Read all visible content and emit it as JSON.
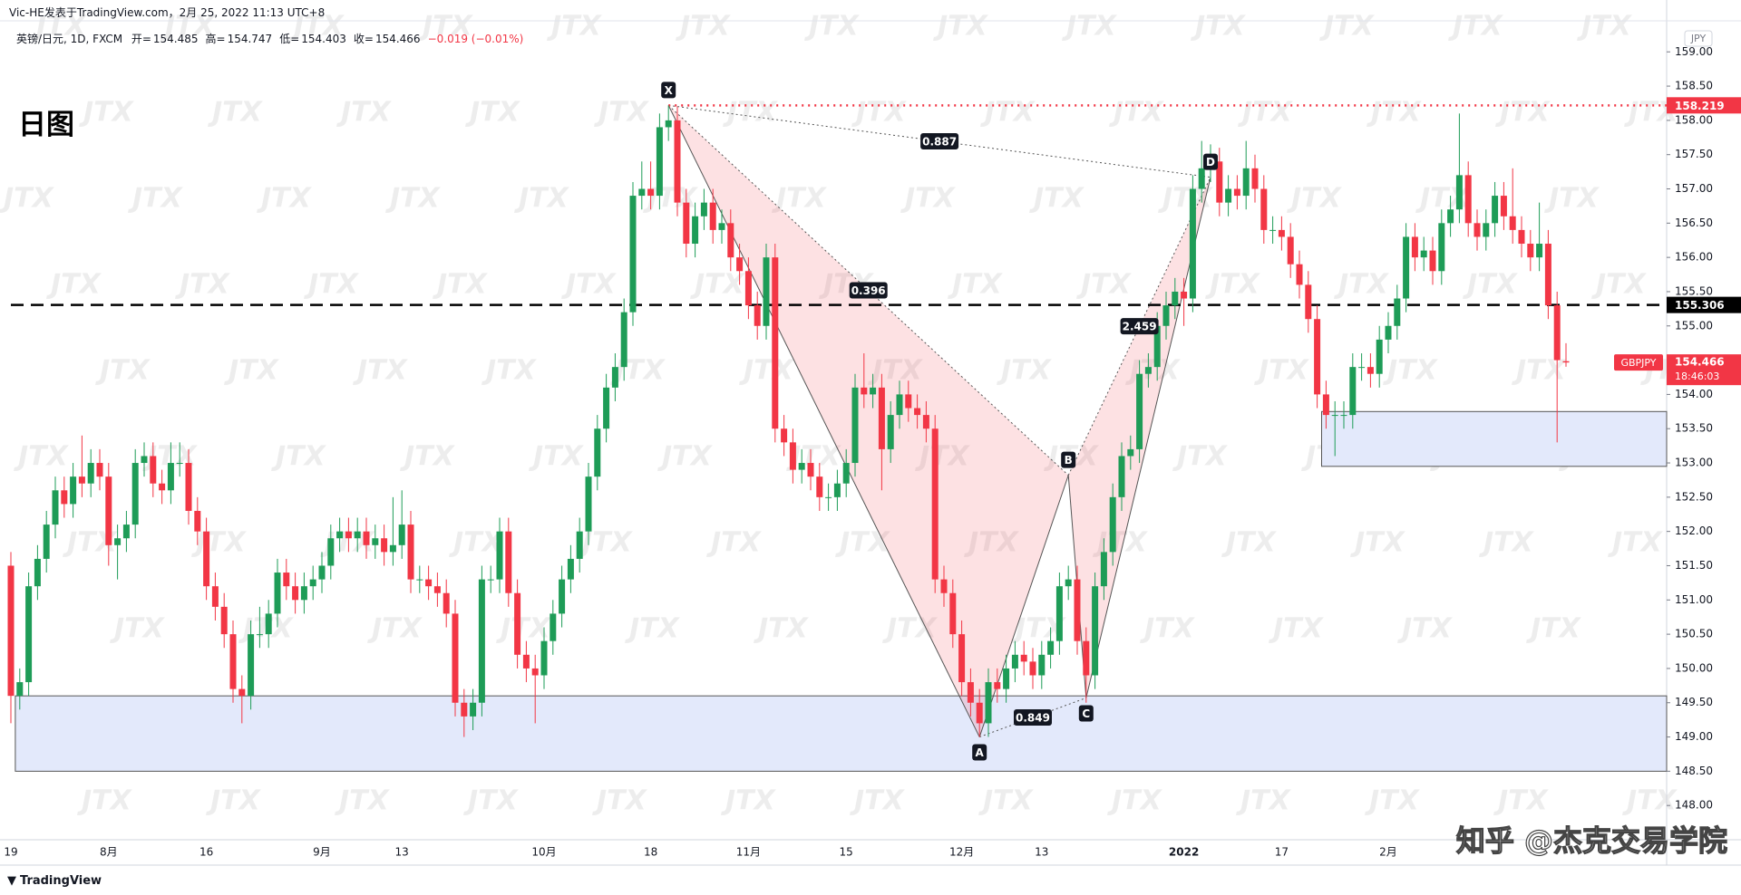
{
  "header": {
    "author_line": "Vic-HE发表于TradingView.com，2月 25, 2022 11:13 UTC+8"
  },
  "footer": {
    "brand": "TradingView",
    "watermark": "知乎 @杰克交易学院"
  },
  "chart_data": {
    "type": "candlestick",
    "title": "日图",
    "unit": "JPY",
    "legend": {
      "symbol": "英镑/日元, 1D, FXCM",
      "fields": [
        {
          "label": "开=",
          "value": 154.485
        },
        {
          "label": "高=",
          "value": 154.747
        },
        {
          "label": "低=",
          "value": 154.403
        },
        {
          "label": "收=",
          "value": 154.466
        }
      ],
      "change": "−0.019 (−0.01%)"
    },
    "background_mark": "JTX",
    "up_color": "#1e9c57",
    "down_color": "#f23645",
    "categories": [
      "19",
      null,
      null,
      null,
      null,
      null,
      null,
      null,
      null,
      null,
      null,
      "8月",
      null,
      null,
      null,
      null,
      null,
      null,
      null,
      null,
      null,
      null,
      "16",
      null,
      null,
      null,
      null,
      null,
      null,
      null,
      null,
      null,
      null,
      null,
      null,
      "9月",
      null,
      null,
      null,
      null,
      null,
      null,
      null,
      null,
      "13",
      null,
      null,
      null,
      null,
      null,
      null,
      null,
      null,
      null,
      null,
      null,
      null,
      null,
      null,
      null,
      "10月",
      null,
      null,
      null,
      null,
      null,
      null,
      null,
      null,
      null,
      null,
      null,
      "18",
      null,
      null,
      null,
      null,
      null,
      null,
      null,
      null,
      null,
      null,
      "11月",
      null,
      null,
      null,
      null,
      null,
      null,
      null,
      null,
      null,
      null,
      "15",
      null,
      null,
      null,
      null,
      null,
      null,
      null,
      null,
      null,
      null,
      null,
      null,
      "12月",
      null,
      null,
      null,
      null,
      null,
      null,
      null,
      null,
      "13",
      null,
      null,
      null,
      null,
      null,
      null,
      null,
      null,
      null,
      null,
      null,
      null,
      null,
      null,
      null,
      "2022",
      null,
      null,
      null,
      null,
      null,
      null,
      null,
      null,
      null,
      null,
      "17",
      null,
      null,
      null,
      null,
      null,
      null,
      null,
      null,
      null,
      null,
      null,
      "2月",
      null,
      null,
      null,
      null,
      null,
      null,
      null,
      null,
      null,
      null,
      null,
      null,
      null,
      null,
      null,
      null,
      null,
      null,
      null,
      null
    ],
    "ohlc": [
      [
        151.5,
        151.7,
        149.2,
        149.6
      ],
      [
        149.6,
        150.0,
        149.4,
        149.8
      ],
      [
        149.8,
        151.4,
        149.6,
        151.2
      ],
      [
        151.2,
        151.8,
        151.0,
        151.6
      ],
      [
        151.6,
        152.3,
        151.4,
        152.1
      ],
      [
        152.1,
        152.8,
        151.9,
        152.6
      ],
      [
        152.6,
        152.8,
        152.2,
        152.4
      ],
      [
        152.4,
        153.0,
        152.2,
        152.8
      ],
      [
        152.8,
        153.4,
        152.5,
        152.7
      ],
      [
        152.7,
        153.2,
        152.5,
        153.0
      ],
      [
        153.0,
        153.2,
        152.6,
        152.8
      ],
      [
        152.8,
        153.0,
        151.5,
        151.8
      ],
      [
        151.8,
        152.1,
        151.3,
        151.9
      ],
      [
        151.9,
        152.3,
        151.7,
        152.1
      ],
      [
        152.1,
        153.2,
        151.9,
        153.0
      ],
      [
        153.0,
        153.3,
        152.8,
        153.1
      ],
      [
        153.1,
        153.3,
        152.5,
        152.7
      ],
      [
        152.7,
        152.9,
        152.4,
        152.6
      ],
      [
        152.6,
        153.3,
        152.4,
        153.0
      ],
      [
        153.0,
        153.3,
        152.8,
        153.0
      ],
      [
        153.0,
        153.2,
        152.1,
        152.3
      ],
      [
        152.3,
        152.5,
        151.8,
        152.0
      ],
      [
        152.0,
        152.2,
        151.0,
        151.2
      ],
      [
        151.2,
        151.4,
        150.7,
        150.9
      ],
      [
        150.9,
        151.1,
        150.3,
        150.5
      ],
      [
        150.5,
        150.7,
        149.5,
        149.7
      ],
      [
        149.7,
        149.9,
        149.2,
        149.6
      ],
      [
        149.6,
        150.7,
        149.4,
        150.5
      ],
      [
        150.5,
        150.9,
        150.3,
        150.5
      ],
      [
        150.5,
        151.0,
        150.3,
        150.8
      ],
      [
        150.8,
        151.6,
        150.6,
        151.4
      ],
      [
        151.4,
        151.6,
        151.0,
        151.2
      ],
      [
        151.2,
        151.4,
        150.8,
        151.0
      ],
      [
        151.0,
        151.4,
        150.8,
        151.2
      ],
      [
        151.2,
        151.5,
        151.0,
        151.3
      ],
      [
        151.3,
        151.7,
        151.1,
        151.5
      ],
      [
        151.5,
        152.1,
        151.3,
        151.9
      ],
      [
        151.9,
        152.2,
        151.7,
        152.0
      ],
      [
        152.0,
        152.2,
        151.7,
        151.9
      ],
      [
        151.9,
        152.2,
        151.7,
        152.0
      ],
      [
        152.0,
        152.2,
        151.6,
        151.8
      ],
      [
        151.8,
        152.1,
        151.6,
        151.9
      ],
      [
        151.9,
        152.1,
        151.5,
        151.7
      ],
      [
        151.7,
        152.5,
        151.5,
        151.8
      ],
      [
        151.8,
        152.6,
        151.6,
        152.1
      ],
      [
        152.1,
        152.3,
        151.1,
        151.3
      ],
      [
        151.3,
        151.5,
        151.1,
        151.3
      ],
      [
        151.3,
        151.5,
        151.0,
        151.2
      ],
      [
        151.2,
        151.4,
        150.9,
        151.1
      ],
      [
        151.1,
        151.3,
        150.6,
        150.8
      ],
      [
        150.8,
        151.0,
        149.3,
        149.5
      ],
      [
        149.5,
        149.7,
        149.0,
        149.3
      ],
      [
        149.3,
        149.7,
        149.1,
        149.5
      ],
      [
        149.5,
        151.5,
        149.3,
        151.3
      ],
      [
        151.3,
        151.5,
        151.1,
        151.3
      ],
      [
        151.3,
        152.2,
        151.1,
        152.0
      ],
      [
        152.0,
        152.2,
        150.9,
        151.1
      ],
      [
        151.1,
        151.3,
        150.0,
        150.2
      ],
      [
        150.2,
        150.4,
        149.8,
        150.0
      ],
      [
        150.0,
        150.2,
        149.2,
        149.9
      ],
      [
        149.9,
        150.6,
        149.7,
        150.4
      ],
      [
        150.4,
        151.0,
        150.2,
        150.8
      ],
      [
        150.8,
        151.5,
        150.6,
        151.3
      ],
      [
        151.3,
        151.8,
        151.1,
        151.6
      ],
      [
        151.6,
        152.2,
        151.4,
        152.0
      ],
      [
        152.0,
        153.0,
        151.8,
        152.8
      ],
      [
        152.8,
        153.7,
        152.6,
        153.5
      ],
      [
        153.5,
        154.3,
        153.3,
        154.1
      ],
      [
        154.1,
        154.6,
        153.9,
        154.4
      ],
      [
        154.4,
        155.4,
        154.2,
        155.2
      ],
      [
        155.2,
        157.1,
        155.0,
        156.9
      ],
      [
        156.9,
        157.4,
        156.7,
        157.0
      ],
      [
        157.0,
        157.4,
        156.7,
        156.9
      ],
      [
        156.9,
        158.1,
        156.7,
        157.9
      ],
      [
        157.9,
        158.219,
        157.7,
        158.0
      ],
      [
        158.0,
        158.2,
        156.6,
        156.8
      ],
      [
        156.8,
        157.0,
        156.0,
        156.2
      ],
      [
        156.2,
        156.8,
        156.0,
        156.6
      ],
      [
        156.6,
        157.0,
        156.4,
        156.8
      ],
      [
        156.8,
        157.0,
        156.2,
        156.4
      ],
      [
        156.4,
        156.7,
        156.2,
        156.5
      ],
      [
        156.5,
        156.7,
        155.8,
        156.0
      ],
      [
        156.0,
        156.2,
        155.6,
        155.8
      ],
      [
        155.8,
        156.0,
        155.1,
        155.3
      ],
      [
        155.3,
        155.5,
        154.8,
        155.0
      ],
      [
        155.0,
        156.2,
        154.8,
        156.0
      ],
      [
        156.0,
        156.2,
        153.3,
        153.5
      ],
      [
        153.5,
        153.7,
        153.1,
        153.3
      ],
      [
        153.3,
        153.5,
        152.7,
        152.9
      ],
      [
        152.9,
        153.2,
        152.7,
        153.0
      ],
      [
        153.0,
        153.2,
        152.6,
        152.8
      ],
      [
        152.8,
        153.0,
        152.3,
        152.5
      ],
      [
        152.5,
        152.7,
        152.3,
        152.5
      ],
      [
        152.5,
        152.9,
        152.3,
        152.7
      ],
      [
        152.7,
        153.2,
        152.5,
        153.0
      ],
      [
        153.0,
        154.3,
        152.8,
        154.1
      ],
      [
        154.1,
        154.6,
        153.8,
        154.0
      ],
      [
        154.0,
        154.3,
        153.8,
        154.1
      ],
      [
        154.1,
        154.3,
        152.6,
        153.2
      ],
      [
        153.2,
        153.9,
        153.0,
        153.7
      ],
      [
        153.7,
        154.2,
        153.5,
        154.0
      ],
      [
        154.0,
        154.2,
        153.6,
        153.8
      ],
      [
        153.8,
        154.0,
        153.5,
        153.7
      ],
      [
        153.7,
        153.9,
        153.3,
        153.5
      ],
      [
        153.5,
        153.7,
        151.1,
        151.3
      ],
      [
        151.3,
        151.5,
        150.9,
        151.1
      ],
      [
        151.1,
        151.3,
        150.3,
        150.5
      ],
      [
        150.5,
        150.7,
        149.6,
        149.8
      ],
      [
        149.8,
        150.0,
        149.3,
        149.5
      ],
      [
        149.5,
        149.7,
        149.0,
        149.2
      ],
      [
        149.2,
        150.0,
        149.0,
        149.8
      ],
      [
        149.8,
        150.0,
        149.5,
        149.7
      ],
      [
        149.7,
        150.2,
        149.5,
        150.0
      ],
      [
        150.0,
        150.4,
        149.8,
        150.2
      ],
      [
        150.2,
        150.4,
        149.9,
        150.1
      ],
      [
        150.1,
        150.3,
        149.7,
        149.9
      ],
      [
        149.9,
        150.4,
        149.7,
        150.2
      ],
      [
        150.2,
        150.6,
        150.0,
        150.4
      ],
      [
        150.4,
        151.4,
        150.2,
        151.2
      ],
      [
        151.2,
        151.5,
        151.0,
        151.3
      ],
      [
        151.3,
        151.5,
        150.2,
        150.4
      ],
      [
        150.4,
        150.6,
        149.5,
        149.9
      ],
      [
        149.9,
        151.4,
        149.7,
        151.2
      ],
      [
        151.2,
        151.9,
        151.0,
        151.7
      ],
      [
        151.7,
        152.7,
        151.5,
        152.5
      ],
      [
        152.5,
        153.3,
        152.3,
        153.1
      ],
      [
        153.1,
        153.4,
        152.9,
        153.2
      ],
      [
        153.2,
        154.5,
        153.0,
        154.3
      ],
      [
        154.3,
        154.6,
        154.1,
        154.4
      ],
      [
        154.4,
        155.2,
        154.2,
        155.0
      ],
      [
        155.0,
        155.5,
        154.8,
        155.3
      ],
      [
        155.3,
        155.7,
        155.1,
        155.5
      ],
      [
        155.5,
        155.7,
        155.0,
        155.4
      ],
      [
        155.4,
        157.2,
        155.2,
        157.0
      ],
      [
        157.0,
        157.7,
        156.8,
        157.3
      ],
      [
        157.3,
        157.65,
        157.1,
        157.4
      ],
      [
        157.4,
        157.6,
        156.6,
        156.8
      ],
      [
        156.8,
        157.2,
        156.6,
        157.0
      ],
      [
        157.0,
        157.2,
        156.7,
        156.9
      ],
      [
        156.9,
        157.7,
        156.7,
        157.3
      ],
      [
        157.3,
        157.5,
        156.8,
        157.0
      ],
      [
        157.0,
        157.2,
        156.2,
        156.4
      ],
      [
        156.4,
        156.6,
        156.2,
        156.4
      ],
      [
        156.4,
        156.6,
        156.1,
        156.3
      ],
      [
        156.3,
        156.5,
        155.7,
        155.9
      ],
      [
        155.9,
        156.1,
        155.4,
        155.6
      ],
      [
        155.6,
        155.8,
        154.9,
        155.1
      ],
      [
        155.1,
        155.3,
        153.8,
        154.0
      ],
      [
        154.0,
        154.2,
        153.5,
        153.7
      ],
      [
        153.7,
        153.9,
        153.1,
        153.7
      ],
      [
        153.7,
        153.9,
        153.5,
        153.7
      ],
      [
        153.7,
        154.6,
        153.5,
        154.4
      ],
      [
        154.4,
        154.6,
        154.2,
        154.4
      ],
      [
        154.4,
        154.6,
        154.1,
        154.3
      ],
      [
        154.3,
        155.0,
        154.1,
        154.8
      ],
      [
        154.8,
        155.2,
        154.6,
        155.0
      ],
      [
        155.0,
        155.6,
        154.8,
        155.4
      ],
      [
        155.4,
        156.5,
        155.2,
        156.3
      ],
      [
        156.3,
        156.5,
        155.8,
        156.0
      ],
      [
        156.0,
        156.3,
        155.8,
        156.1
      ],
      [
        156.1,
        156.3,
        155.6,
        155.8
      ],
      [
        155.8,
        156.7,
        155.6,
        156.5
      ],
      [
        156.5,
        156.9,
        156.3,
        156.7
      ],
      [
        156.7,
        158.1,
        156.5,
        157.2
      ],
      [
        157.2,
        157.4,
        156.3,
        156.5
      ],
      [
        156.5,
        156.7,
        156.1,
        156.3
      ],
      [
        156.3,
        156.7,
        156.1,
        156.5
      ],
      [
        156.5,
        157.1,
        156.3,
        156.9
      ],
      [
        156.9,
        157.1,
        156.4,
        156.6
      ],
      [
        156.6,
        157.3,
        156.2,
        156.4
      ],
      [
        156.4,
        156.6,
        156.0,
        156.2
      ],
      [
        156.2,
        156.4,
        155.8,
        156.0
      ],
      [
        156.0,
        156.8,
        155.8,
        156.2
      ],
      [
        156.2,
        156.4,
        155.1,
        155.3
      ],
      [
        155.3,
        155.5,
        153.3,
        154.5
      ],
      [
        154.485,
        154.747,
        154.403,
        154.466
      ]
    ],
    "ylim": [
      147.5,
      159.4
    ],
    "yticks": [
      {
        "value": 148.0,
        "label": "148.00"
      },
      {
        "value": 148.5,
        "label": "148.50"
      },
      {
        "value": 149.0,
        "label": "149.00"
      },
      {
        "value": 149.5,
        "label": "149.50"
      },
      {
        "value": 150.0,
        "label": "150.00"
      },
      {
        "value": 150.5,
        "label": "150.50"
      },
      {
        "value": 151.0,
        "label": "151.00"
      },
      {
        "value": 151.5,
        "label": "151.50"
      },
      {
        "value": 152.0,
        "label": "152.00"
      },
      {
        "value": 152.5,
        "label": "152.50"
      },
      {
        "value": 153.0,
        "label": "153.00"
      },
      {
        "value": 153.5,
        "label": "153.50"
      },
      {
        "value": 154.0,
        "label": "154.00"
      },
      {
        "value": 154.5,
        "label": "154.50"
      },
      {
        "value": 155.0,
        "label": "155.00"
      },
      {
        "value": 155.5,
        "label": "155.50"
      },
      {
        "value": 156.0,
        "label": "156.00"
      },
      {
        "value": 156.5,
        "label": "156.50"
      },
      {
        "value": 157.0,
        "label": "157.00"
      },
      {
        "value": 157.5,
        "label": "157.50"
      },
      {
        "value": 158.0,
        "label": "158.00"
      },
      {
        "value": 158.5,
        "label": "158.50"
      },
      {
        "value": 159.0,
        "label": "159.00"
      }
    ],
    "zones": [
      {
        "from": 1,
        "low": 148.5,
        "high": 149.6,
        "color": "#e3e9fb"
      },
      {
        "from": 148,
        "low": 152.95,
        "high": 153.75,
        "color": "#e3e9fb"
      }
    ],
    "levels": [
      {
        "value": 158.219,
        "from": 74,
        "color": "#f23645",
        "style": "dotted"
      },
      {
        "value": 155.306,
        "from": 0,
        "color": "#000000",
        "style": "dashed"
      }
    ],
    "pattern": {
      "color": "#f23645",
      "points": [
        {
          "label": "X",
          "x": 74,
          "y": 158.219
        },
        {
          "label": "A",
          "x": 109,
          "y": 149.0
        },
        {
          "label": "B",
          "x": 119,
          "y": 152.82
        },
        {
          "label": "C",
          "x": 121,
          "y": 149.57
        },
        {
          "label": "D",
          "x": 135,
          "y": 157.17
        }
      ],
      "ratios": [
        0.887,
        0.396,
        0.849,
        2.459
      ]
    },
    "last": {
      "symbol": "GBPJPY",
      "price": 154.466,
      "countdown": "18:46:03",
      "color": "#f23645"
    }
  }
}
